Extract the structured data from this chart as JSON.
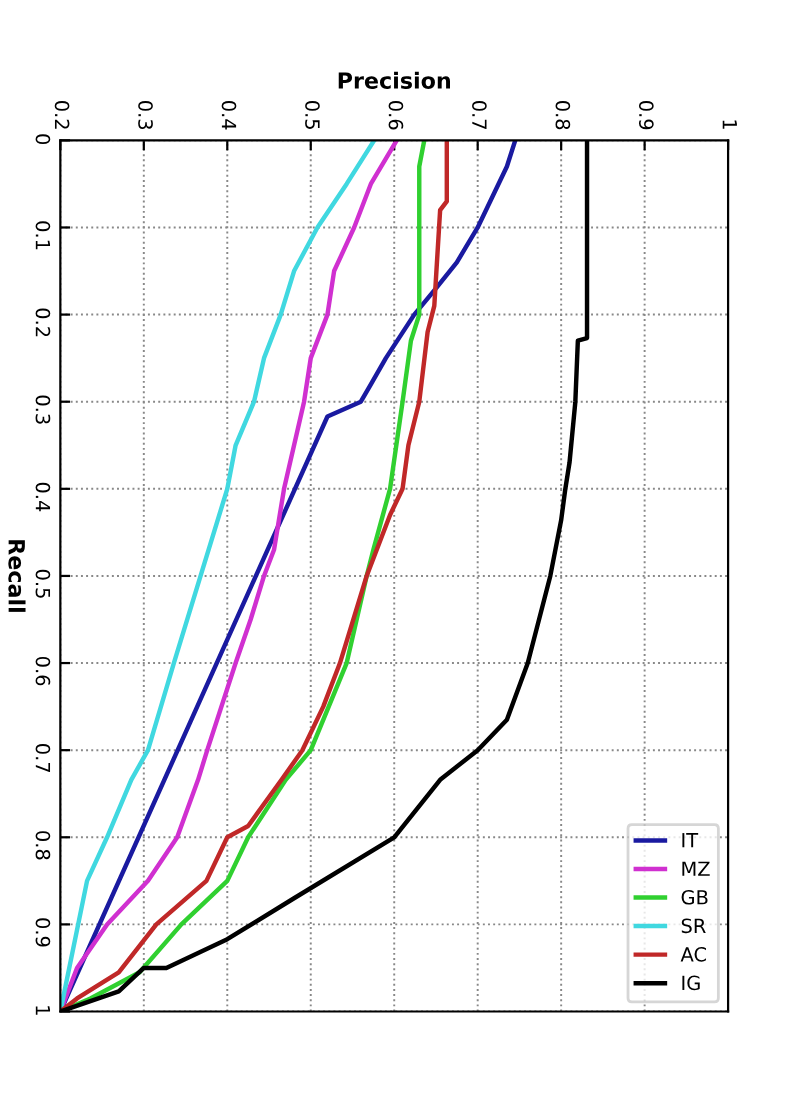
{
  "chart_data": {
    "type": "line",
    "xlabel": "Precision",
    "ylabel": "Recall",
    "xlim": [
      0.2,
      1
    ],
    "xticks": [
      0.2,
      0.3,
      0.4,
      0.5,
      0.6,
      0.7,
      0.8,
      0.9,
      1
    ],
    "ylim": [
      1,
      0
    ],
    "yticks": [
      0,
      0.1,
      0.2,
      0.3,
      0.4,
      0.5,
      0.6,
      0.7,
      0.8,
      0.9,
      1
    ],
    "grid": true,
    "legend": "bottom right",
    "marker": "none",
    "line_style": "solid",
    "series": [
      {
        "name": "IT",
        "color": "#1a1aa0",
        "x": [
          0.745,
          0.735,
          0.7,
          0.675,
          0.65,
          0.624,
          0.59,
          0.572,
          0.56,
          0.52,
          0.2
        ],
        "values": [
          0,
          0.03,
          0.1,
          0.14,
          0.17,
          0.2,
          0.25,
          0.28,
          0.3,
          0.317,
          1
        ]
      },
      {
        "name": "MZ",
        "color": "#d030d0",
        "x": [
          0.603,
          0.572,
          0.552,
          0.528,
          0.52,
          0.5,
          0.492,
          0.468,
          0.456,
          0.444,
          0.428,
          0.41,
          0.376,
          0.365,
          0.34,
          0.305,
          0.256,
          0.22,
          0.2
        ],
        "values": [
          0,
          0.05,
          0.1,
          0.15,
          0.2,
          0.25,
          0.3,
          0.4,
          0.47,
          0.5,
          0.55,
          0.6,
          0.7,
          0.734,
          0.8,
          0.85,
          0.9,
          0.95,
          1
        ]
      },
      {
        "name": "GB",
        "color": "#30d030",
        "x": [
          0.636,
          0.63,
          0.63,
          0.62,
          0.61,
          0.595,
          0.575,
          0.567,
          0.543,
          0.5,
          0.47,
          0.425,
          0.4,
          0.345,
          0.295,
          0.236,
          0.2
        ],
        "values": [
          0,
          0.03,
          0.2,
          0.23,
          0.3,
          0.4,
          0.47,
          0.5,
          0.6,
          0.7,
          0.734,
          0.8,
          0.85,
          0.9,
          0.955,
          0.985,
          1
        ]
      },
      {
        "name": "SR",
        "color": "#40d8e0",
        "x": [
          0.576,
          0.543,
          0.508,
          0.48,
          0.464,
          0.444,
          0.432,
          0.41,
          0.4,
          0.368,
          0.336,
          0.305,
          0.285,
          0.256,
          0.232,
          0.2
        ],
        "values": [
          0,
          0.05,
          0.1,
          0.15,
          0.2,
          0.25,
          0.3,
          0.35,
          0.4,
          0.5,
          0.6,
          0.7,
          0.734,
          0.8,
          0.85,
          1
        ]
      },
      {
        "name": "AC",
        "color": "#c02828",
        "x": [
          0.663,
          0.663,
          0.655,
          0.648,
          0.64,
          0.63,
          0.617,
          0.61,
          0.595,
          0.567,
          0.535,
          0.515,
          0.49,
          0.465,
          0.425,
          0.4,
          0.375,
          0.315,
          0.27,
          0.22,
          0.2
        ],
        "values": [
          0,
          0.07,
          0.08,
          0.19,
          0.22,
          0.3,
          0.35,
          0.4,
          0.43,
          0.5,
          0.6,
          0.65,
          0.7,
          0.734,
          0.787,
          0.8,
          0.85,
          0.9,
          0.955,
          0.985,
          1
        ]
      },
      {
        "name": "IG",
        "color": "#000000",
        "x": [
          0.831,
          0.831,
          0.82,
          0.817,
          0.81,
          0.805,
          0.8,
          0.787,
          0.76,
          0.735,
          0.7,
          0.655,
          0.6,
          0.48,
          0.4,
          0.327,
          0.3,
          0.27,
          0.2
        ],
        "values": [
          0,
          0.227,
          0.23,
          0.3,
          0.37,
          0.4,
          0.436,
          0.5,
          0.6,
          0.665,
          0.7,
          0.734,
          0.8,
          0.87,
          0.917,
          0.95,
          0.95,
          0.977,
          1
        ]
      }
    ]
  }
}
